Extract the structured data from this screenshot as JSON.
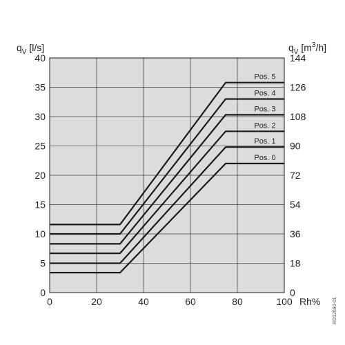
{
  "chart_data": {
    "type": "line",
    "x_label": "Rh%",
    "y_left_label": {
      "main": "q",
      "sub": "V",
      "unit": " [l/s]"
    },
    "y_right_label": {
      "main": "q",
      "sub": "V",
      "unit_prefix": " [m",
      "unit_sup": "3",
      "unit_suffix": "/h]"
    },
    "xlim": [
      0,
      100
    ],
    "ylim": [
      0,
      40
    ],
    "x_ticks": [
      "0",
      "20",
      "40",
      "60",
      "80",
      "100"
    ],
    "y_ticks_left": [
      "0",
      "5",
      "10",
      "15",
      "20",
      "25",
      "30",
      "35",
      "40"
    ],
    "y_ticks_right": [
      "0",
      "18",
      "36",
      "54",
      "72",
      "90",
      "108",
      "126",
      "144"
    ],
    "grid": true,
    "background_color": "#dcdcdc",
    "line_color": "#1a1a1a",
    "series": [
      {
        "name": "Pos. 0",
        "x": [
          0,
          30,
          75,
          100
        ],
        "y": [
          3.4,
          3.4,
          22.0,
          22.0
        ]
      },
      {
        "name": "Pos. 1",
        "x": [
          0,
          30,
          75,
          100
        ],
        "y": [
          5.0,
          5.0,
          24.8,
          24.8
        ]
      },
      {
        "name": "Pos. 2",
        "x": [
          0,
          30,
          75,
          100
        ],
        "y": [
          6.7,
          6.7,
          27.5,
          27.5
        ]
      },
      {
        "name": "Pos. 3",
        "x": [
          0,
          30,
          75,
          100
        ],
        "y": [
          8.3,
          8.3,
          30.3,
          30.3
        ]
      },
      {
        "name": "Pos. 4",
        "x": [
          0,
          30,
          75,
          100
        ],
        "y": [
          10.0,
          10.0,
          33.0,
          33.0
        ]
      },
      {
        "name": "Pos. 5",
        "x": [
          0,
          30,
          75,
          100
        ],
        "y": [
          11.6,
          11.6,
          35.8,
          35.8
        ]
      }
    ],
    "figure_code": "RD12690-01"
  }
}
